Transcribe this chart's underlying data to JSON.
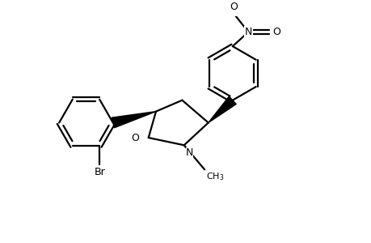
{
  "bg_color": "#ffffff",
  "line_color": "#000000",
  "lw": 1.6,
  "figsize": [
    4.6,
    3.0
  ],
  "dpi": 100,
  "xlim": [
    0,
    9.2
  ],
  "ylim": [
    0,
    6.0
  ]
}
